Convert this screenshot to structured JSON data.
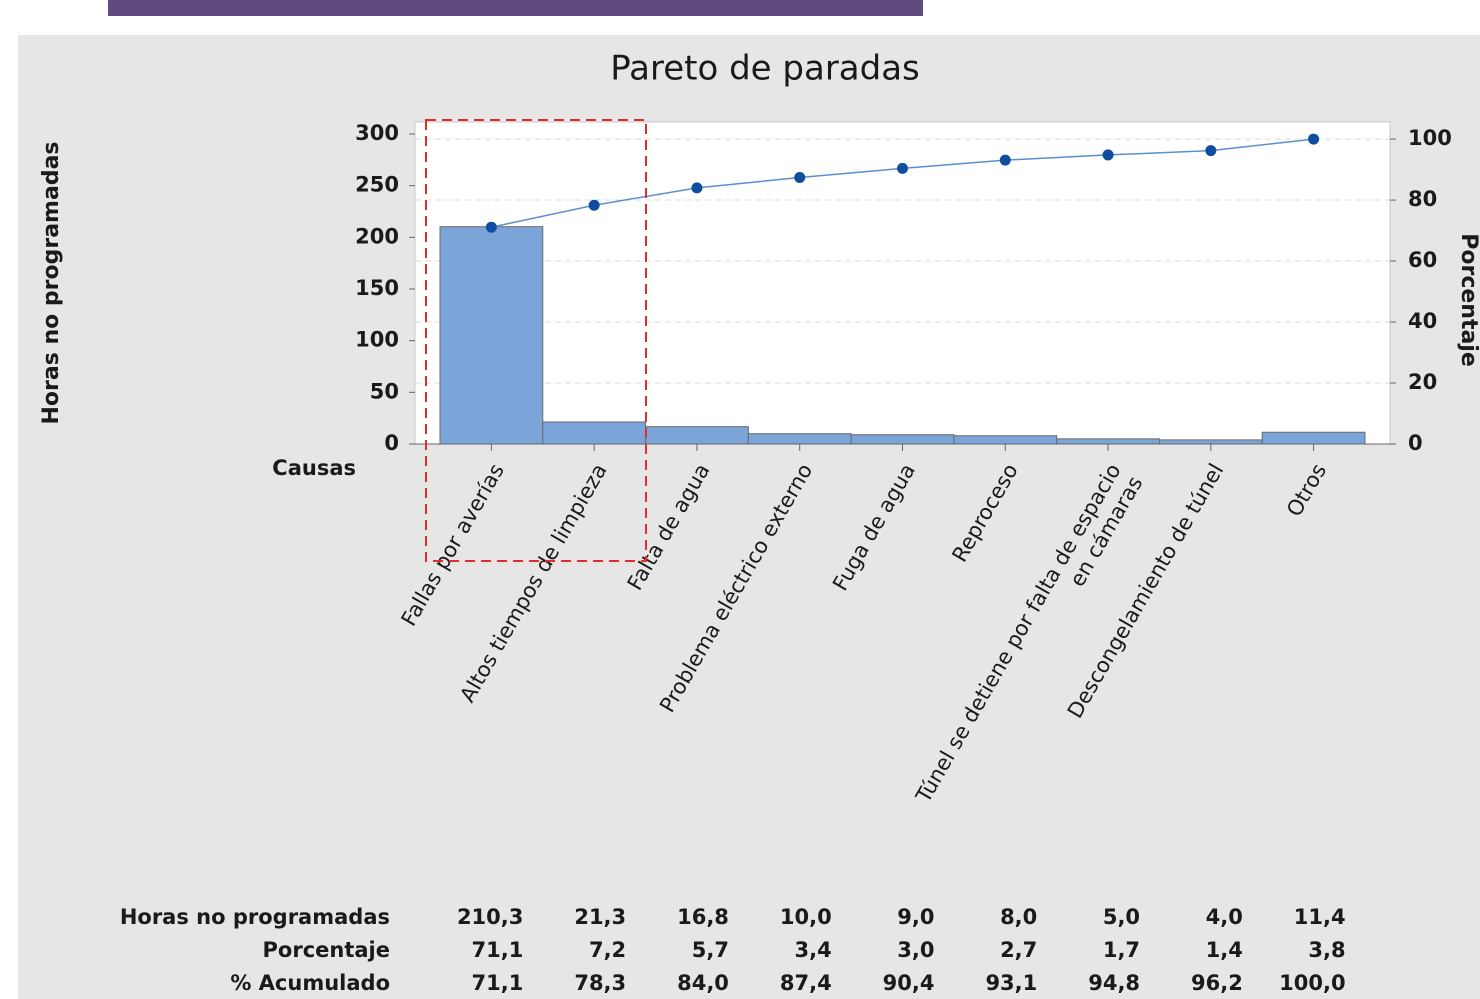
{
  "chart_data": {
    "type": "pareto",
    "title": "Pareto de paradas",
    "ylabel": "Horas no programadas",
    "y2label": "Porcentaje",
    "xlabel": "Causas",
    "categories": [
      "Fallas por averías",
      "Altos tiempos de limpieza",
      "Falta de agua",
      "Problema eléctrico externo",
      "Fuga de agua",
      "Reproceso",
      "Túnel se detiene por falta de espacio\nen cámaras",
      "Descongelamiento de túnel",
      "Otros"
    ],
    "series": [
      {
        "name": "Horas no programadas",
        "color": "#7ba4d9",
        "values": [
          210.3,
          21.3,
          16.8,
          10.0,
          9.0,
          8.0,
          5.0,
          4.0,
          11.4
        ],
        "value_labels": [
          "210,3",
          "21,3",
          "16,8",
          "10,0",
          "9,0",
          "8,0",
          "5,0",
          "4,0",
          "11,4"
        ]
      },
      {
        "name": "Porcentaje",
        "values": [
          71.1,
          7.2,
          5.7,
          3.4,
          3.0,
          2.7,
          1.7,
          1.4,
          3.8
        ],
        "value_labels": [
          "71,1",
          "7,2",
          "5,7",
          "3,4",
          "3,0",
          "2,7",
          "1,7",
          "1,4",
          "3,8"
        ]
      },
      {
        "name": "% Acumulado",
        "color": "#0d4f9e",
        "axis": "y2",
        "values": [
          71.1,
          78.3,
          84.0,
          87.4,
          90.4,
          93.1,
          94.8,
          96.2,
          100.0
        ],
        "value_labels": [
          "71,1",
          "78,3",
          "84,0",
          "87,4",
          "90,4",
          "93,1",
          "94,8",
          "96,2",
          "100,0"
        ]
      }
    ],
    "ylim": [
      0,
      311.6
    ],
    "yticks": [
      0,
      50,
      100,
      150,
      200,
      250,
      300
    ],
    "y2lim": [
      0,
      105.6
    ],
    "y2ticks": [
      0,
      20,
      40,
      60,
      80,
      100
    ],
    "grid": true
  }
}
